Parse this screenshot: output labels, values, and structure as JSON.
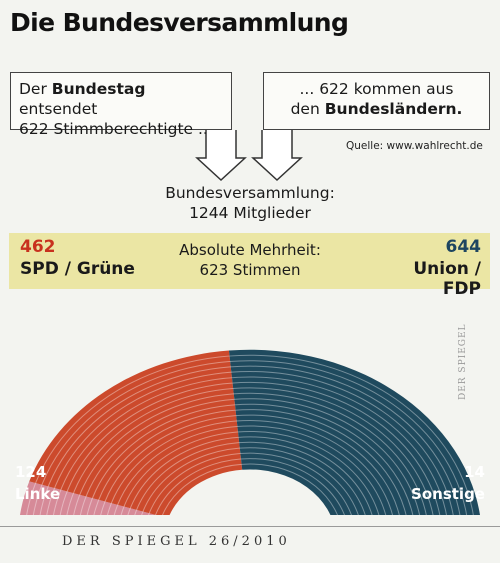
{
  "title": "Die Bundesversammlung",
  "box_left": {
    "pre": "Der ",
    "bold": "Bundestag",
    "post": " entsendet",
    "line2": "622 Stimmberechtigte ..."
  },
  "box_right": {
    "line1": "... 622 kommen aus",
    "pre": "den ",
    "bold": "Bundesländern."
  },
  "source": "Quelle: www.wahlrecht.de",
  "center": {
    "line1": "Bundesversammlung:",
    "line2": "1244 Mitglieder"
  },
  "majority": {
    "line1": "Absolute Mehrheit:",
    "line2": "623 Stimmen"
  },
  "watermark": "DER SPIEGEL",
  "footer": "DER SPIEGEL 26/2010",
  "colors": {
    "linke": "#d68a98",
    "spd": "#cc4a2c",
    "union": "#1f4a5e",
    "sonstige": "#93a3ad"
  },
  "chart_data": {
    "type": "pie",
    "total": 1244,
    "segments": [
      {
        "key": "linke",
        "num": "124",
        "label": "Linke",
        "value": 124
      },
      {
        "key": "spd",
        "num": "462",
        "label": "SPD / Grüne",
        "value": 462
      },
      {
        "key": "union",
        "num": "644",
        "label": "Union / FDP",
        "value": 644
      },
      {
        "key": "sonstige",
        "num": "14",
        "label": "Sonstige",
        "value": 14
      }
    ]
  }
}
